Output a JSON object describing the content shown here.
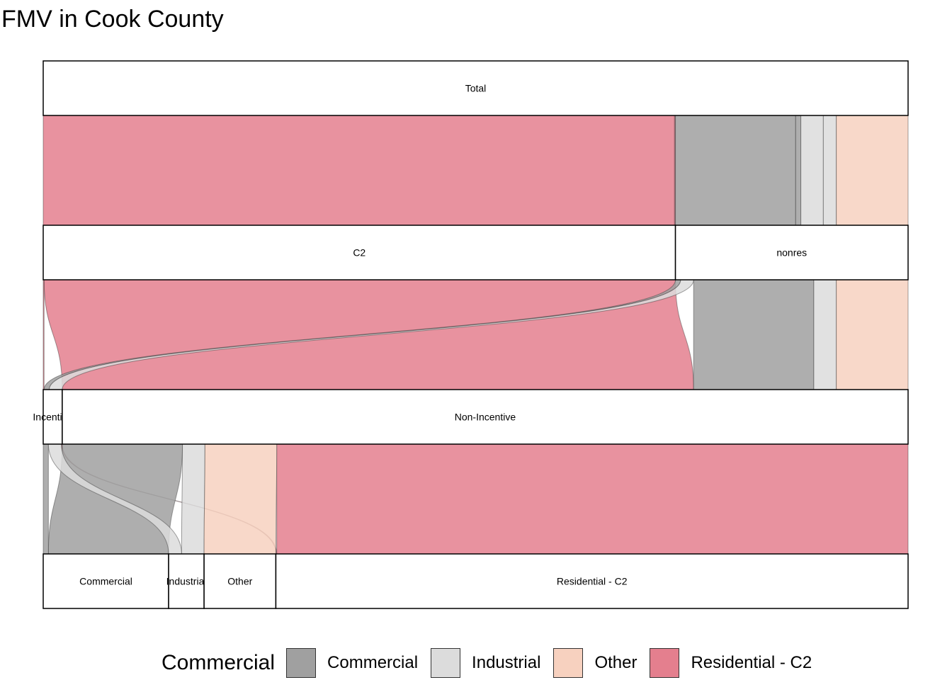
{
  "title": "FMV in Cook County",
  "legend": {
    "title": "Commercial",
    "items": [
      {
        "label": "Commercial",
        "color": "#a0a0a0"
      },
      {
        "label": "Industrial",
        "color": "#dcdcdc"
      },
      {
        "label": "Other",
        "color": "#f7d1bf"
      },
      {
        "label": "Residential - C2",
        "color": "#e47f8e"
      }
    ]
  },
  "chart_data": {
    "type": "alluvial",
    "title": "FMV in Cook County",
    "axes": [
      {
        "name": "axis1",
        "strata": [
          "Total"
        ]
      },
      {
        "name": "axis2",
        "strata": [
          "C2",
          "nonres"
        ]
      },
      {
        "name": "axis3",
        "strata": [
          "Incentive",
          "Non-Incentive"
        ]
      },
      {
        "name": "axis4",
        "strata": [
          "Commercial",
          "Industrial",
          "Other",
          "Residential - C2"
        ]
      }
    ],
    "fill_variable": "Commercial",
    "flows": [
      {
        "path": [
          "Total",
          "C2",
          "Non-Incentive",
          "Residential - C2"
        ],
        "fill": "Residential - C2",
        "share": 0.73
      },
      {
        "path": [
          "Total",
          "C2",
          "Incentive",
          "Residential - C2"
        ],
        "fill": "Residential - C2",
        "share": 0.001
      },
      {
        "path": [
          "Total",
          "nonres",
          "Non-Incentive",
          "Commercial"
        ],
        "fill": "Commercial",
        "share": 0.139
      },
      {
        "path": [
          "Total",
          "nonres",
          "Incentive",
          "Commercial"
        ],
        "fill": "Commercial",
        "share": 0.006
      },
      {
        "path": [
          "Total",
          "nonres",
          "Non-Incentive",
          "Industrial"
        ],
        "fill": "Industrial",
        "share": 0.026
      },
      {
        "path": [
          "Total",
          "nonres",
          "Incentive",
          "Industrial"
        ],
        "fill": "Industrial",
        "share": 0.015
      },
      {
        "path": [
          "Total",
          "nonres",
          "Non-Incentive",
          "Other"
        ],
        "fill": "Other",
        "share": 0.083
      }
    ],
    "legend_position": "bottom"
  }
}
